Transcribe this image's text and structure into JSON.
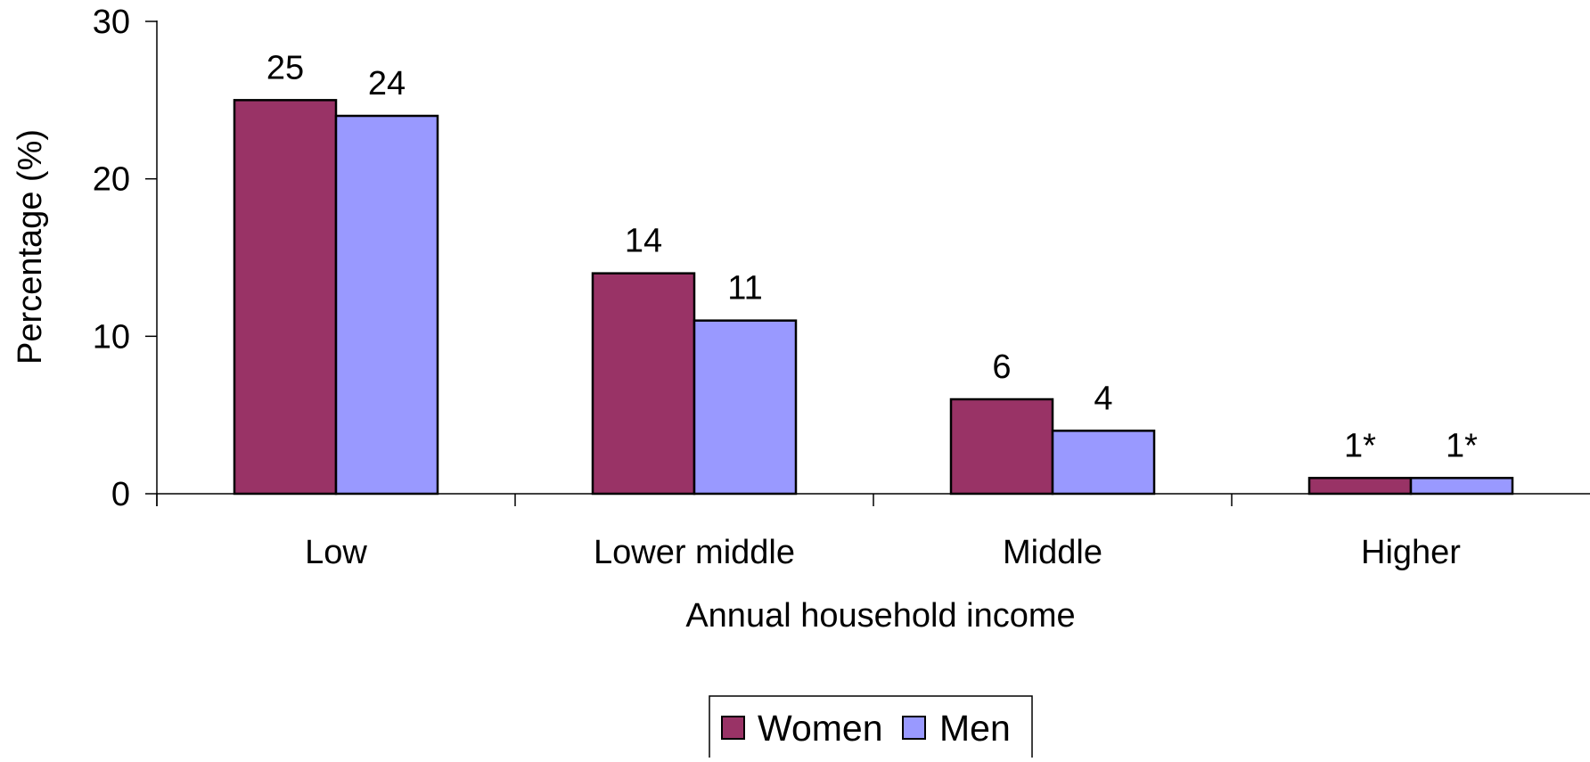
{
  "chart_data": {
    "type": "bar",
    "categories": [
      "Low",
      "Lower middle",
      "Middle",
      "Higher"
    ],
    "series": [
      {
        "name": "Women",
        "values": [
          25,
          14,
          6,
          1
        ],
        "labels": [
          "25",
          "14",
          "6",
          "1*"
        ]
      },
      {
        "name": "Men",
        "values": [
          24,
          11,
          4,
          1
        ],
        "labels": [
          "24",
          "11",
          "4",
          "1*"
        ]
      }
    ],
    "title": "",
    "xlabel": "Annual household income",
    "ylabel": "Percentage (%)",
    "ylim": [
      0,
      30
    ],
    "yticks": [
      "0",
      "10",
      "20",
      "30"
    ],
    "grid": false,
    "legend": "bottom",
    "colors": {
      "Women": "#993366",
      "Men": "#9999FF",
      "axis": "#000000"
    }
  }
}
